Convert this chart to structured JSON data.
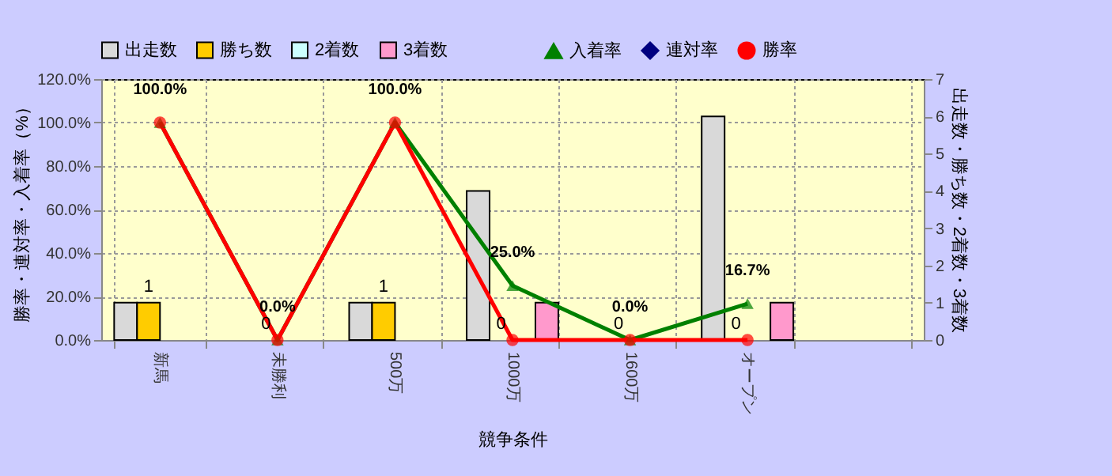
{
  "chart_data": {
    "type": "bar",
    "xlabel": "競争条件",
    "ylabel": "勝率・連対率・入着率（%）",
    "y2label": "出走数・勝ち数・2着数・3着数",
    "categories": [
      "新馬",
      "未勝利",
      "500万",
      "1000万",
      "1600万",
      "オープン",
      null
    ],
    "series": [
      {
        "name": "出走数",
        "axis": "y2",
        "color": "#d9d9d9",
        "values": [
          1,
          0,
          1,
          4,
          0,
          6,
          null
        ]
      },
      {
        "name": "勝ち数",
        "axis": "y2",
        "color": "#ffcc00",
        "values": [
          1,
          0,
          1,
          0,
          0,
          0,
          null
        ],
        "value_labels": [
          "1",
          "0",
          "1",
          "0",
          "0",
          "0",
          null
        ]
      },
      {
        "name": "2着数",
        "axis": "y2",
        "color": "#ccffff",
        "values": [
          0,
          0,
          0,
          0,
          0,
          0,
          null
        ]
      },
      {
        "name": "3着数",
        "axis": "y2",
        "color": "#ff99cc",
        "values": [
          0,
          0,
          0,
          1,
          0,
          1,
          null
        ]
      },
      {
        "name": "入着率",
        "type": "line",
        "marker": "triangle",
        "color": "#008000",
        "values": [
          100,
          0,
          100,
          25,
          0,
          16.7,
          null
        ],
        "value_labels": [
          "100.0%",
          "0.0%",
          "100.0%",
          "25.0%",
          "0.0%",
          "16.7%",
          null
        ]
      },
      {
        "name": "連対率",
        "type": "line",
        "marker": "diamond",
        "color": "#000080",
        "values": [
          null,
          null,
          null,
          null,
          null,
          null,
          null
        ]
      },
      {
        "name": "勝率",
        "type": "line",
        "marker": "circle",
        "color": "#ff0000",
        "values": [
          100,
          0,
          100,
          0,
          0,
          0,
          null
        ]
      }
    ],
    "ylim": [
      0,
      120
    ],
    "yticks": [
      {
        "value": 0,
        "label": "0.0%"
      },
      {
        "value": 20,
        "label": "20.0%"
      },
      {
        "value": 40,
        "label": "40.0%"
      },
      {
        "value": 60,
        "label": "60.0%"
      },
      {
        "value": 80,
        "label": "80.0%"
      },
      {
        "value": 100,
        "label": "100.0%"
      },
      {
        "value": 120,
        "label": "120.0%"
      }
    ],
    "y2lim": [
      0,
      7
    ],
    "y2ticks": [
      0,
      1,
      2,
      3,
      4,
      5,
      6,
      7
    ],
    "grid": true,
    "legend": "top"
  }
}
